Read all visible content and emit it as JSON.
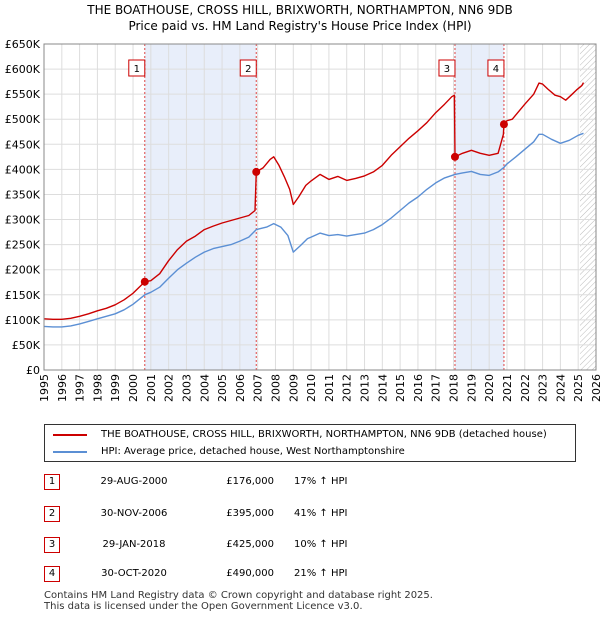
{
  "chart_data": {
    "type": "line",
    "title": "THE BOATHOUSE, CROSS HILL, BRIXWORTH, NORTHAMPTON, NN6 9DB",
    "subtitle": "Price paid vs. HM Land Registry's House Price Index (HPI)",
    "xlim": [
      1995,
      2026
    ],
    "ylim": [
      0,
      650000
    ],
    "x_ticks": [
      "1995",
      "1996",
      "1997",
      "1998",
      "1999",
      "2000",
      "2001",
      "2002",
      "2003",
      "2004",
      "2005",
      "2006",
      "2007",
      "2008",
      "2009",
      "2010",
      "2011",
      "2012",
      "2013",
      "2014",
      "2015",
      "2016",
      "2017",
      "2018",
      "2019",
      "2020",
      "2021",
      "2022",
      "2023",
      "2024",
      "2025",
      "2026"
    ],
    "y_ticks": [
      {
        "value": 0,
        "label": "£0"
      },
      {
        "value": 50000,
        "label": "£50K"
      },
      {
        "value": 100000,
        "label": "£100K"
      },
      {
        "value": 150000,
        "label": "£150K"
      },
      {
        "value": 200000,
        "label": "£200K"
      },
      {
        "value": 250000,
        "label": "£250K"
      },
      {
        "value": 300000,
        "label": "£300K"
      },
      {
        "value": 350000,
        "label": "£350K"
      },
      {
        "value": 400000,
        "label": "£400K"
      },
      {
        "value": 450000,
        "label": "£450K"
      },
      {
        "value": 500000,
        "label": "£500K"
      },
      {
        "value": 550000,
        "label": "£550K"
      },
      {
        "value": 600000,
        "label": "£600K"
      },
      {
        "value": 650000,
        "label": "£650K"
      }
    ],
    "shaded_periods": [
      [
        2000.66,
        2006.92
      ],
      [
        2018.08,
        2020.83
      ]
    ],
    "forecast_start": 2025.1,
    "series": [
      {
        "name": "THE BOATHOUSE, CROSS HILL, BRIXWORTH, NORTHAMPTON, NN6 9DB (detached house)",
        "color": "#cc0000",
        "points": [
          [
            1995.0,
            102000
          ],
          [
            1995.5,
            101000
          ],
          [
            1996.0,
            101000
          ],
          [
            1996.5,
            103000
          ],
          [
            1997.0,
            107000
          ],
          [
            1997.5,
            112000
          ],
          [
            1998.0,
            118000
          ],
          [
            1998.5,
            123000
          ],
          [
            1999.0,
            130000
          ],
          [
            1999.5,
            140000
          ],
          [
            2000.0,
            153000
          ],
          [
            2000.4,
            167000
          ],
          [
            2000.66,
            176000
          ],
          [
            2001.0,
            178000
          ],
          [
            2001.5,
            192000
          ],
          [
            2002.0,
            218000
          ],
          [
            2002.5,
            240000
          ],
          [
            2003.0,
            257000
          ],
          [
            2003.5,
            267000
          ],
          [
            2004.0,
            280000
          ],
          [
            2004.5,
            287000
          ],
          [
            2005.0,
            293000
          ],
          [
            2005.5,
            298000
          ],
          [
            2006.0,
            303000
          ],
          [
            2006.5,
            308000
          ],
          [
            2006.85,
            318000
          ],
          [
            2006.92,
            395000
          ],
          [
            2007.3,
            403000
          ],
          [
            2007.7,
            420000
          ],
          [
            2007.9,
            425000
          ],
          [
            2008.2,
            408000
          ],
          [
            2008.5,
            385000
          ],
          [
            2008.8,
            360000
          ],
          [
            2009.0,
            330000
          ],
          [
            2009.3,
            345000
          ],
          [
            2009.7,
            368000
          ],
          [
            2010.0,
            377000
          ],
          [
            2010.5,
            390000
          ],
          [
            2011.0,
            380000
          ],
          [
            2011.5,
            386000
          ],
          [
            2012.0,
            378000
          ],
          [
            2012.5,
            382000
          ],
          [
            2013.0,
            387000
          ],
          [
            2013.5,
            395000
          ],
          [
            2014.0,
            408000
          ],
          [
            2014.5,
            428000
          ],
          [
            2015.0,
            445000
          ],
          [
            2015.5,
            462000
          ],
          [
            2016.0,
            477000
          ],
          [
            2016.5,
            493000
          ],
          [
            2017.0,
            513000
          ],
          [
            2017.5,
            530000
          ],
          [
            2017.9,
            545000
          ],
          [
            2018.05,
            548000
          ],
          [
            2018.08,
            425000
          ],
          [
            2018.5,
            432000
          ],
          [
            2019.0,
            438000
          ],
          [
            2019.5,
            432000
          ],
          [
            2020.0,
            428000
          ],
          [
            2020.5,
            432000
          ],
          [
            2020.8,
            470000
          ],
          [
            2020.83,
            490000
          ],
          [
            2021.0,
            497000
          ],
          [
            2021.3,
            500000
          ],
          [
            2021.6,
            513000
          ],
          [
            2022.0,
            530000
          ],
          [
            2022.5,
            550000
          ],
          [
            2022.8,
            572000
          ],
          [
            2023.0,
            570000
          ],
          [
            2023.3,
            560000
          ],
          [
            2023.7,
            548000
          ],
          [
            2024.0,
            545000
          ],
          [
            2024.3,
            538000
          ],
          [
            2024.6,
            548000
          ],
          [
            2024.9,
            558000
          ],
          [
            2025.2,
            567000
          ],
          [
            2025.3,
            573000
          ]
        ]
      },
      {
        "name": "HPI: Average price, detached house, West Northamptonshire",
        "color": "#5b8fd4",
        "points": [
          [
            1995.0,
            87000
          ],
          [
            1995.5,
            86000
          ],
          [
            1996.0,
            86000
          ],
          [
            1996.5,
            88000
          ],
          [
            1997.0,
            92000
          ],
          [
            1997.5,
            97000
          ],
          [
            1998.0,
            102000
          ],
          [
            1998.5,
            107000
          ],
          [
            1999.0,
            112000
          ],
          [
            1999.5,
            120000
          ],
          [
            2000.0,
            131000
          ],
          [
            2000.66,
            150000
          ],
          [
            2001.0,
            155000
          ],
          [
            2001.5,
            165000
          ],
          [
            2002.0,
            183000
          ],
          [
            2002.5,
            200000
          ],
          [
            2003.0,
            213000
          ],
          [
            2003.5,
            225000
          ],
          [
            2004.0,
            235000
          ],
          [
            2004.5,
            242000
          ],
          [
            2005.0,
            246000
          ],
          [
            2005.5,
            250000
          ],
          [
            2006.0,
            257000
          ],
          [
            2006.5,
            265000
          ],
          [
            2006.92,
            280000
          ],
          [
            2007.5,
            285000
          ],
          [
            2007.9,
            292000
          ],
          [
            2008.3,
            285000
          ],
          [
            2008.7,
            268000
          ],
          [
            2009.0,
            235000
          ],
          [
            2009.4,
            248000
          ],
          [
            2009.8,
            262000
          ],
          [
            2010.0,
            265000
          ],
          [
            2010.5,
            273000
          ],
          [
            2011.0,
            268000
          ],
          [
            2011.5,
            270000
          ],
          [
            2012.0,
            267000
          ],
          [
            2012.5,
            270000
          ],
          [
            2013.0,
            273000
          ],
          [
            2013.5,
            280000
          ],
          [
            2014.0,
            290000
          ],
          [
            2014.5,
            303000
          ],
          [
            2015.0,
            318000
          ],
          [
            2015.5,
            333000
          ],
          [
            2016.0,
            345000
          ],
          [
            2016.5,
            360000
          ],
          [
            2017.0,
            373000
          ],
          [
            2017.5,
            383000
          ],
          [
            2018.08,
            390000
          ],
          [
            2018.5,
            393000
          ],
          [
            2019.0,
            396000
          ],
          [
            2019.5,
            390000
          ],
          [
            2020.0,
            388000
          ],
          [
            2020.5,
            395000
          ],
          [
            2020.83,
            404000
          ],
          [
            2021.0,
            411000
          ],
          [
            2021.5,
            425000
          ],
          [
            2022.0,
            440000
          ],
          [
            2022.5,
            455000
          ],
          [
            2022.8,
            470000
          ],
          [
            2023.0,
            470000
          ],
          [
            2023.5,
            460000
          ],
          [
            2024.0,
            452000
          ],
          [
            2024.5,
            458000
          ],
          [
            2025.0,
            468000
          ],
          [
            2025.3,
            472000
          ]
        ]
      }
    ],
    "sales": [
      {
        "num": "1",
        "x": 2000.66,
        "y": 176000,
        "date": "29-AUG-2000",
        "price": "£176,000",
        "hpi": "17% ↑ HPI"
      },
      {
        "num": "2",
        "x": 2006.92,
        "y": 395000,
        "date": "30-NOV-2006",
        "price": "£395,000",
        "hpi": "41% ↑ HPI"
      },
      {
        "num": "3",
        "x": 2018.08,
        "y": 425000,
        "date": "29-JAN-2018",
        "price": "£425,000",
        "hpi": "10% ↑ HPI"
      },
      {
        "num": "4",
        "x": 2020.83,
        "y": 490000,
        "date": "30-OCT-2020",
        "price": "£490,000",
        "hpi": "21% ↑ HPI"
      }
    ]
  },
  "legend": {
    "property_label": "THE BOATHOUSE, CROSS HILL, BRIXWORTH, NORTHAMPTON, NN6 9DB (detached house)",
    "hpi_label": "HPI: Average price, detached house, West Northamptonshire",
    "property_color": "#cc0000",
    "hpi_color": "#5b8fd4"
  },
  "footer": {
    "line1": "Contains HM Land Registry data © Crown copyright and database right 2025.",
    "line2": "This data is licensed under the Open Government Licence v3.0."
  }
}
